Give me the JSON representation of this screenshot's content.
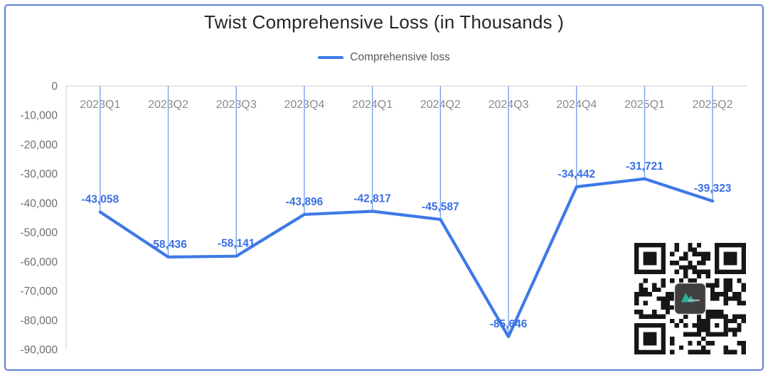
{
  "window": {
    "background": "#ffffff",
    "frame_border_color": "#5b81d5"
  },
  "title": "Twist Comprehensive Loss (in Thousands )",
  "legend": {
    "label": "Comprehensive loss",
    "line_color": "#3d79e7"
  },
  "chart_data": {
    "type": "line",
    "title": "Twist Comprehensive Loss (in Thousands )",
    "categories": [
      "2023Q1",
      "2023Q2",
      "2023Q3",
      "2023Q4",
      "2024Q1",
      "2024Q2",
      "2024Q3",
      "2024Q4",
      "2025Q1",
      "2025Q2"
    ],
    "series": [
      {
        "name": "Comprehensive loss",
        "values": [
          -43058,
          -58436,
          -58141,
          -43896,
          -42817,
          -45587,
          -85646,
          -34442,
          -31721,
          -39323
        ]
      }
    ],
    "data_labels": [
      "-43,058",
      "-58,436",
      "-58,141",
      "-43,896",
      "-42,817",
      "-45,587",
      "-85,646",
      "-34,442",
      "-31,721",
      "-39,323"
    ],
    "xlabel": "",
    "ylabel": "",
    "ylim": [
      -90000,
      0
    ],
    "y_tick_labels": [
      "0",
      "-10,000",
      "-20,000",
      "-30,000",
      "-40,000",
      "-50,000",
      "-60,000",
      "-70,000",
      "-80,000",
      "-90,000"
    ],
    "y_tick_values": [
      0,
      -10000,
      -20000,
      -30000,
      -40000,
      -50000,
      -60000,
      -70000,
      -80000,
      -90000
    ],
    "grid": "off",
    "legend_position": "top",
    "drop_lines": true,
    "colors": {
      "line": "#3d79e7",
      "data_label": "#3a6fe2",
      "drop_line": "#7ba1ed",
      "axis_line": "#d9d9d9",
      "x_tick": "#8a8a8a",
      "y_tick": "#6e6e6e"
    }
  },
  "qr": {
    "label": "qr-code",
    "dark_color": "#161616",
    "logo_background": "#403e3f",
    "logo_glyph_color": "#2fae9b"
  }
}
